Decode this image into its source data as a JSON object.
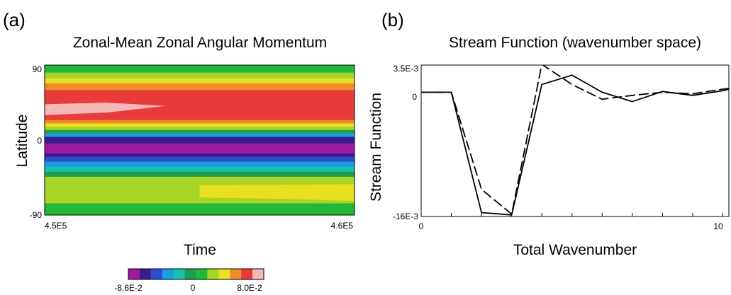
{
  "chart_data": [
    {
      "type": "heatmap",
      "panel_label": "(a)",
      "title": "Zonal-Mean Zonal Angular Momentum",
      "xlabel": "Time",
      "ylabel": "Latitude",
      "x_ticks": [
        "4.5E5",
        "4.6E5"
      ],
      "y_ticks": [
        "90",
        "0",
        "-90"
      ],
      "xlim": [
        450000,
        460000
      ],
      "ylim": [
        -90,
        90
      ],
      "colorbar": {
        "colors": [
          "#a01aa0",
          "#3a1c8c",
          "#2a4fd0",
          "#1aa0e0",
          "#19c0b0",
          "#1aa050",
          "#22b838",
          "#a8d428",
          "#e8e020",
          "#f08a2a",
          "#e83c3c",
          "#f4b8b8"
        ],
        "tick_labels": [
          "-8.6E-2",
          "0",
          "8.0E-2"
        ],
        "min": -0.086,
        "max": 0.08
      },
      "bands": [
        {
          "lat_top": 90,
          "lat_bottom": 81,
          "level": 6
        },
        {
          "lat_top": 81,
          "lat_bottom": 74,
          "level": 7
        },
        {
          "lat_top": 74,
          "lat_bottom": 68,
          "level": 8
        },
        {
          "lat_top": 68,
          "lat_bottom": 60,
          "level": 9
        },
        {
          "lat_top": 60,
          "lat_bottom": 24,
          "level": 10
        },
        {
          "lat_top": 24,
          "lat_bottom": 20,
          "level": 9
        },
        {
          "lat_top": 20,
          "lat_bottom": 16,
          "level": 8
        },
        {
          "lat_top": 16,
          "lat_bottom": 12,
          "level": 7
        },
        {
          "lat_top": 12,
          "lat_bottom": 8,
          "level": 5
        },
        {
          "lat_top": 8,
          "lat_bottom": 4,
          "level": 3
        },
        {
          "lat_top": 4,
          "lat_bottom": -4,
          "level": 1
        },
        {
          "lat_top": -4,
          "lat_bottom": -16,
          "level": 0
        },
        {
          "lat_top": -16,
          "lat_bottom": -20,
          "level": 1
        },
        {
          "lat_top": -20,
          "lat_bottom": -26,
          "level": 2
        },
        {
          "lat_top": -26,
          "lat_bottom": -32,
          "level": 3
        },
        {
          "lat_top": -32,
          "lat_bottom": -38,
          "level": 4
        },
        {
          "lat_top": -38,
          "lat_bottom": -44,
          "level": 5
        },
        {
          "lat_top": -44,
          "lat_bottom": -76,
          "level": 7
        },
        {
          "lat_top": -76,
          "lat_bottom": -90,
          "level": 6
        }
      ],
      "regions": [
        {
          "level": 11,
          "points": [
            [
              450000,
              43
            ],
            [
              452000,
              45
            ],
            [
              453900,
              41
            ],
            [
              452000,
              33
            ],
            [
              450000,
              30
            ]
          ]
        },
        {
          "level": 8,
          "points": [
            [
              455000,
              -54
            ],
            [
              460000,
              -53
            ],
            [
              460000,
              -73
            ],
            [
              457000,
              -70
            ],
            [
              455000,
              -69
            ]
          ]
        }
      ]
    },
    {
      "type": "line",
      "panel_label": "(b)",
      "title": "Stream Function (wavenumber space)",
      "xlabel": "Total Wavenumber",
      "ylabel": "Stream Function",
      "x_ticks": [
        "0",
        "10"
      ],
      "y_ticks": [
        "3.5E-3",
        "0",
        "-16E-3"
      ],
      "xlim": [
        0,
        10.2
      ],
      "ylim": [
        -0.016,
        0.0035
      ],
      "x": [
        0,
        1,
        2,
        3,
        4,
        5,
        6,
        7,
        8,
        9,
        10,
        10.2
      ],
      "series": [
        {
          "style": "solid",
          "values": [
            0,
            0,
            -0.0155,
            -0.0158,
            0.001,
            0.0022,
            0,
            -0.0012,
            0.0001,
            -0.0004,
            0.0002,
            0.0004
          ]
        },
        {
          "style": "dashed",
          "values": [
            0,
            0,
            -0.0125,
            -0.0157,
            0.0036,
            0.001,
            -0.0009,
            -0.0004,
            0,
            -0.0002,
            0.0004,
            0.0005
          ]
        }
      ]
    }
  ]
}
